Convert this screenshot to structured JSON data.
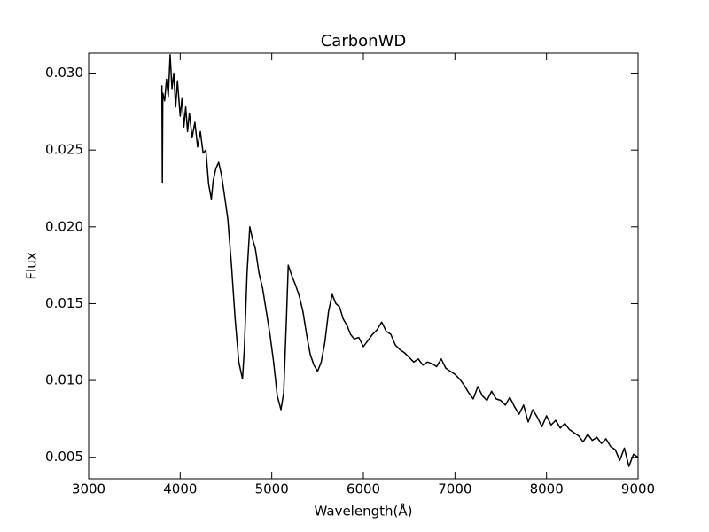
{
  "chart_data": {
    "type": "line",
    "title": "CarbonWD",
    "x_label": "Wavelength(Å)",
    "y_label": "Flux",
    "xlim": [
      3000,
      9000
    ],
    "xticks": [
      3000,
      4000,
      5000,
      6000,
      7000,
      8000,
      9000
    ],
    "ylim": [
      0.0036,
      0.0313
    ],
    "yticks": [
      0.005,
      {
        "value": 0.01,
        "label": "0.010"
      },
      0.015,
      {
        "value": 0.02,
        "label": "0.020"
      },
      0.025,
      {
        "value": 0.03,
        "label": "0.030"
      }
    ],
    "grid": false,
    "x": [
      3800,
      3805,
      3810,
      3830,
      3850,
      3870,
      3890,
      3910,
      3930,
      3950,
      3970,
      4000,
      4020,
      4040,
      4060,
      4080,
      4100,
      4130,
      4160,
      4190,
      4220,
      4250,
      4280,
      4310,
      4340,
      4360,
      4390,
      4420,
      4450,
      4480,
      4520,
      4560,
      4600,
      4640,
      4680,
      4700,
      4730,
      4760,
      4790,
      4820,
      4860,
      4900,
      4940,
      4980,
      5020,
      5060,
      5100,
      5130,
      5160,
      5180,
      5220,
      5260,
      5300,
      5340,
      5380,
      5420,
      5460,
      5500,
      5540,
      5580,
      5620,
      5660,
      5700,
      5740,
      5780,
      5820,
      5860,
      5900,
      5950,
      6000,
      6050,
      6100,
      6150,
      6200,
      6250,
      6300,
      6350,
      6400,
      6450,
      6500,
      6550,
      6600,
      6650,
      6700,
      6750,
      6800,
      6850,
      6900,
      6950,
      7000,
      7050,
      7100,
      7150,
      7200,
      7250,
      7300,
      7350,
      7400,
      7450,
      7500,
      7550,
      7600,
      7650,
      7700,
      7750,
      7800,
      7850,
      7900,
      7950,
      8000,
      8050,
      8100,
      8150,
      8200,
      8250,
      8300,
      8350,
      8400,
      8450,
      8500,
      8550,
      8600,
      8650,
      8700,
      8750,
      8800,
      8850,
      8900,
      8950,
      9000
    ],
    "series": [
      {
        "color": "#000000",
        "values": [
          0.0292,
          0.0229,
          0.0287,
          0.0282,
          0.0296,
          0.0285,
          0.0312,
          0.029,
          0.03,
          0.0278,
          0.0295,
          0.0272,
          0.0284,
          0.0265,
          0.0278,
          0.0262,
          0.0274,
          0.0258,
          0.0268,
          0.0252,
          0.0262,
          0.0248,
          0.025,
          0.0228,
          0.0218,
          0.023,
          0.0238,
          0.0242,
          0.0234,
          0.0222,
          0.0205,
          0.0175,
          0.014,
          0.0112,
          0.0101,
          0.012,
          0.017,
          0.02,
          0.0192,
          0.0186,
          0.017,
          0.016,
          0.0145,
          0.013,
          0.0112,
          0.009,
          0.0081,
          0.0092,
          0.014,
          0.0175,
          0.0168,
          0.0162,
          0.0155,
          0.0145,
          0.013,
          0.0117,
          0.011,
          0.0106,
          0.0112,
          0.0125,
          0.0145,
          0.0156,
          0.015,
          0.0148,
          0.014,
          0.0136,
          0.013,
          0.0127,
          0.0128,
          0.0122,
          0.0126,
          0.013,
          0.0133,
          0.0138,
          0.0132,
          0.013,
          0.0123,
          0.012,
          0.0118,
          0.0115,
          0.0112,
          0.0114,
          0.011,
          0.0112,
          0.0111,
          0.0109,
          0.0114,
          0.0108,
          0.0106,
          0.0104,
          0.0101,
          0.0097,
          0.0092,
          0.0088,
          0.0096,
          0.009,
          0.0087,
          0.0093,
          0.0088,
          0.0087,
          0.0084,
          0.0089,
          0.0083,
          0.0078,
          0.0084,
          0.0073,
          0.0081,
          0.0076,
          0.007,
          0.0077,
          0.0071,
          0.0074,
          0.0069,
          0.0072,
          0.0068,
          0.0066,
          0.0064,
          0.006,
          0.0065,
          0.0061,
          0.0063,
          0.0059,
          0.0062,
          0.0057,
          0.0055,
          0.0048,
          0.0056,
          0.0044,
          0.0052,
          0.005
        ]
      }
    ]
  }
}
